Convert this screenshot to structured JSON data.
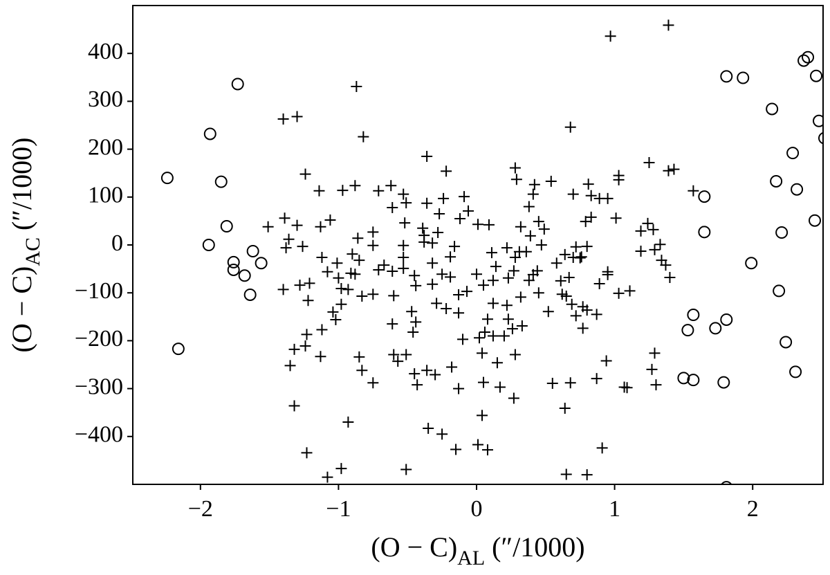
{
  "chart_data": {
    "type": "scatter",
    "xlabel": {
      "main": "(O − C)",
      "sub": "AL",
      "unit": "(″/1000)"
    },
    "ylabel": {
      "main": "(O − C)",
      "sub": "AC",
      "unit": "(″/1000)"
    },
    "xlim": [
      -2.49,
      2.51
    ],
    "ylim": [
      -500,
      500
    ],
    "xticks": [
      {
        "value": -2,
        "label": "−2"
      },
      {
        "value": -1,
        "label": "−1"
      },
      0,
      1,
      2
    ],
    "yticks": [
      {
        "value": -400,
        "label": "−400"
      },
      {
        "value": -300,
        "label": "−300"
      },
      {
        "value": -200,
        "label": "−200"
      },
      {
        "value": -100,
        "label": "−100"
      },
      0,
      100,
      200,
      300,
      400
    ],
    "series": [
      {
        "marker": "circle",
        "color": "#000000",
        "x": [
          -2.24,
          -2.16,
          -1.93,
          -1.94,
          -1.85,
          -1.81,
          -1.76,
          -1.76,
          -1.73,
          -1.68,
          -1.64,
          -1.62,
          -1.56,
          1.65,
          1.65,
          1.5,
          1.53,
          1.57,
          1.57,
          1.73,
          1.81,
          1.79,
          1.81,
          1.81,
          1.93,
          1.99,
          2.14,
          2.17,
          2.19,
          2.21,
          2.24,
          2.29,
          2.31,
          2.32,
          2.37,
          2.4,
          2.46,
          2.48,
          2.52,
          2.45
        ],
        "values": [
          140,
          -217,
          232,
          0,
          132,
          39,
          -36,
          -52,
          336,
          -64,
          -104,
          -13,
          -38,
          101,
          27,
          -278,
          -178,
          -282,
          -146,
          -174,
          -156,
          -287,
          -506,
          352,
          349,
          -38,
          284,
          133,
          -96,
          26,
          -203,
          192,
          -265,
          116,
          385,
          392,
          353,
          259,
          223,
          51
        ]
      },
      {
        "marker": "plus",
        "color": "#000000",
        "x": [
          0.97,
          1.39,
          -0.87,
          -1.4,
          -1.3,
          -0.82,
          0.68,
          -1.24,
          -0.36,
          -0.22,
          0.28,
          0.29,
          0.89,
          1.03,
          1.03,
          1.39,
          1.43,
          1.25,
          1.57,
          0.54,
          0.42,
          0.81,
          0.83,
          0.7,
          0.83,
          0.79,
          0.8,
          0.95,
          1.01,
          0.95,
          0.95,
          1.24,
          1.19,
          1.19,
          1.03,
          1.11,
          1.33,
          1.37,
          1.4,
          1.34,
          1.28,
          1.29,
          1.29,
          1.27,
          1.3,
          1.09,
          0.94,
          0.87,
          0.8,
          0.72,
          0.77,
          0.62,
          0.65,
          0.69,
          0.7,
          0.72,
          0.76,
          0.64,
          0.58,
          0.47,
          0.41,
          0.28,
          0.31,
          0.27,
          0.23,
          0.26,
          0.28,
          0.15,
          0.27,
          0.33,
          0.2,
          0.23,
          0.22,
          0.08,
          0.12,
          0.06,
          0.04,
          0.05,
          -0.07,
          -0.13,
          -0.13,
          -0.22,
          -0.29,
          -0.32,
          -0.44,
          -0.47,
          -0.46,
          -0.51,
          -0.44,
          -0.57,
          -0.61,
          -0.6,
          -0.45,
          -0.53,
          -0.61,
          -0.6,
          -0.71,
          -0.75,
          -0.75,
          -0.67,
          -0.85,
          -0.86,
          -0.9,
          -0.91,
          -1.01,
          -0.98,
          -1.12,
          -1.08,
          -1.21,
          -1.22,
          -1.12,
          -1.02,
          -0.98,
          -1.28,
          -1.26,
          -1.4,
          -1.36,
          -1.3,
          -1.38,
          -1.51,
          -1.39,
          -1.06,
          -1.13,
          -1.14,
          -0.97,
          -0.88,
          -0.71,
          -0.62,
          -0.53,
          -0.51,
          -0.52,
          -0.61,
          -0.75,
          -0.83,
          -0.88,
          -1.0,
          -1.04,
          -0.93,
          -1.13,
          -1.32,
          -1.35,
          -1.23,
          -1.24,
          -0.85,
          -0.83,
          -0.75,
          -0.45,
          -0.36,
          -0.3,
          -0.18,
          -0.13,
          0.05,
          -0.43,
          -0.93,
          -1.32,
          -1.23,
          -1.08,
          -0.98,
          -0.51,
          -0.35,
          -0.25,
          -0.15,
          0.04,
          0.01,
          0.08,
          0.65,
          0.8,
          0.91,
          0.64,
          1.07,
          0.87,
          0.68,
          0.55,
          0.17,
          0.02,
          -0.1,
          0.0,
          0.12,
          0.32,
          0.38,
          0.45,
          0.52,
          0.77,
          0.89,
          -0.12,
          -0.06,
          0.01,
          0.09,
          -0.09,
          -0.27,
          -0.24,
          -0.38,
          -0.28,
          -0.32,
          -0.38,
          -0.16,
          0.11,
          0.22,
          0.36,
          0.39,
          0.38,
          0.41,
          0.32,
          0.49,
          0.45,
          0.44,
          0.61,
          0.67,
          0.75,
          -0.36,
          -0.39,
          -0.32,
          -0.19,
          -0.53,
          -0.53,
          -0.25,
          -0.19,
          0.14,
          0.12
        ],
        "values": [
          436,
          459,
          331,
          263,
          268,
          226,
          246,
          148,
          185,
          154,
          161,
          137,
          97,
          145,
          136,
          155,
          158,
          172,
          113,
          133,
          126,
          127,
          103,
          106,
          58,
          49,
          -3,
          97,
          56,
          -56,
          -62,
          45,
          29,
          -13,
          -101,
          -96,
          1,
          -42,
          -68,
          -32,
          32,
          -10,
          -226,
          -260,
          -292,
          -298,
          -242,
          -145,
          -136,
          -148,
          -174,
          -103,
          -107,
          -124,
          -26,
          -4,
          -25,
          -20,
          -38,
          0,
          -62,
          -26,
          -14,
          -54,
          -69,
          -175,
          -229,
          -246,
          -320,
          -169,
          -190,
          -155,
          -126,
          -155,
          -190,
          -182,
          -226,
          -84,
          -97,
          -104,
          -142,
          -133,
          -122,
          -82,
          -85,
          -139,
          -182,
          -229,
          -161,
          -243,
          -165,
          -229,
          -64,
          -49,
          -55,
          -106,
          -52,
          -1,
          27,
          -42,
          -32,
          14,
          -19,
          -59,
          -38,
          -91,
          -26,
          -56,
          -80,
          -116,
          -177,
          -156,
          -124,
          -84,
          -3,
          -93,
          12,
          41,
          -6,
          38,
          56,
          52,
          38,
          113,
          114,
          124,
          113,
          124,
          106,
          88,
          46,
          78,
          -103,
          -107,
          -61,
          -69,
          -140,
          -93,
          -233,
          -218,
          -252,
          -187,
          -211,
          -234,
          -262,
          -288,
          -269,
          -262,
          -271,
          -255,
          -300,
          -287,
          -292,
          -370,
          -336,
          -434,
          -485,
          -467,
          -469,
          -383,
          -395,
          -427,
          -356,
          -417,
          -428,
          -479,
          -480,
          -424,
          -341,
          -297,
          -279,
          -288,
          -289,
          -297,
          -194,
          -197,
          -61,
          -122,
          -109,
          -74,
          -100,
          -139,
          -129,
          -81,
          55,
          71,
          43,
          42,
          101,
          65,
          97,
          20,
          26,
          4,
          6,
          -3,
          -16,
          -6,
          -14,
          19,
          80,
          106,
          38,
          33,
          49,
          -54,
          -75,
          -68,
          -27,
          87,
          35,
          -38,
          -25,
          -26,
          -1,
          -61,
          -67,
          -45,
          -74
        ]
      }
    ]
  }
}
